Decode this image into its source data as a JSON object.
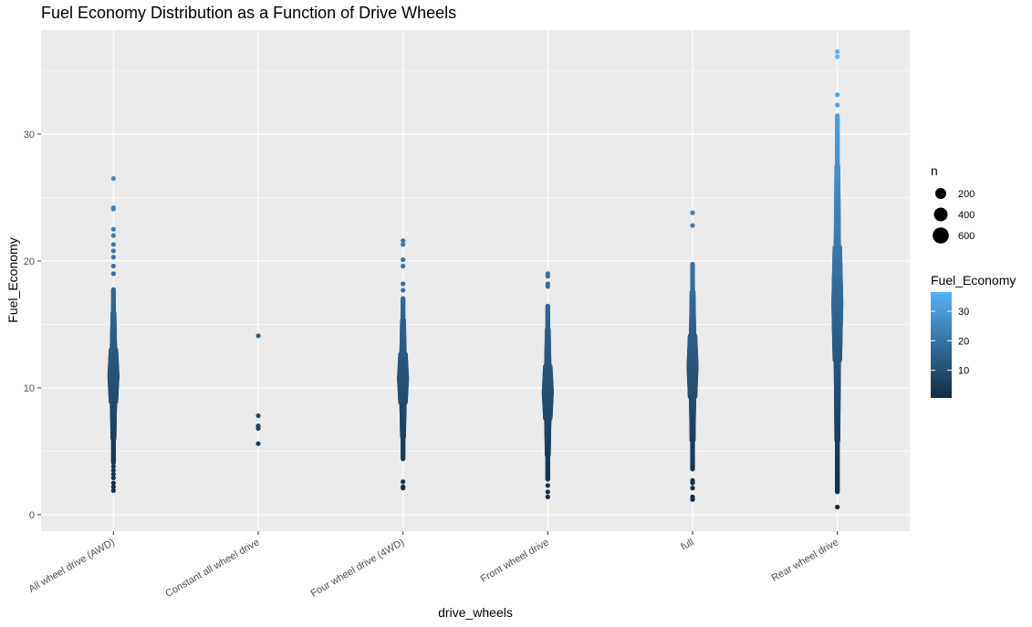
{
  "chart_data": {
    "type": "scatter",
    "title": "Fuel Economy Distribution as a Function of Drive Wheels",
    "xlabel": "drive_wheels",
    "ylabel": "Fuel_Economy",
    "categories": [
      "All wheel drive (AWD)",
      "Constant all wheel drive",
      "Four wheel drive (4WD)",
      "Front wheel drive",
      "full",
      "Rear wheel drive"
    ],
    "yticks": [
      0,
      10,
      20,
      30
    ],
    "ylim": [
      -1.3,
      38.2
    ],
    "grid": true,
    "series": [
      {
        "category": "All wheel drive (AWD)",
        "min": 1.9,
        "dense_low": 4.1,
        "dense_high": 17.8,
        "max": 26.5,
        "outliers": [
          1.9,
          2.2,
          2.5,
          2.9,
          3.2,
          3.5,
          3.8,
          19.0,
          19.6,
          20.3,
          20.8,
          21.3,
          22.0,
          22.5,
          24.1,
          24.2,
          26.5
        ]
      },
      {
        "category": "Constant all wheel drive",
        "min": 5.6,
        "dense_low": 0,
        "dense_high": 0,
        "max": 14.1,
        "outliers": [
          5.6,
          6.8,
          7.0,
          7.8,
          14.1
        ]
      },
      {
        "category": "Four wheel drive (4WD)",
        "min": 2.1,
        "dense_low": 4.4,
        "dense_high": 17.1,
        "max": 21.6,
        "outliers": [
          2.1,
          2.2,
          2.6,
          17.7,
          18.2,
          19.6,
          20.1,
          21.3,
          21.6
        ]
      },
      {
        "category": "Front wheel drive",
        "min": 1.4,
        "dense_low": 2.8,
        "dense_high": 16.5,
        "max": 19.0,
        "outliers": [
          1.4,
          1.8,
          2.3,
          18.0,
          18.2,
          18.8,
          19.0
        ]
      },
      {
        "category": "full",
        "min": 1.2,
        "dense_low": 3.6,
        "dense_high": 19.8,
        "max": 23.8,
        "outliers": [
          1.2,
          1.4,
          2.1,
          2.5,
          2.7,
          22.8,
          23.8
        ]
      },
      {
        "category": "Rear wheel drive",
        "min": 0.6,
        "dense_low": 1.8,
        "dense_high": 31.5,
        "max": 36.5,
        "outliers": [
          0.6,
          32.3,
          33.1,
          36.1,
          36.5
        ]
      }
    ]
  },
  "legend_size": {
    "title": "n",
    "entries": [
      {
        "label": "200"
      },
      {
        "label": "400"
      },
      {
        "label": "600"
      }
    ]
  },
  "legend_color": {
    "title": "Fuel_Economy",
    "labels": [
      "10",
      "20",
      "30"
    ],
    "low_color": "#132B43",
    "high_color": "#56B1F7"
  },
  "colors": {
    "panel": "#EBEBEB",
    "grid": "#FFFFFF"
  }
}
